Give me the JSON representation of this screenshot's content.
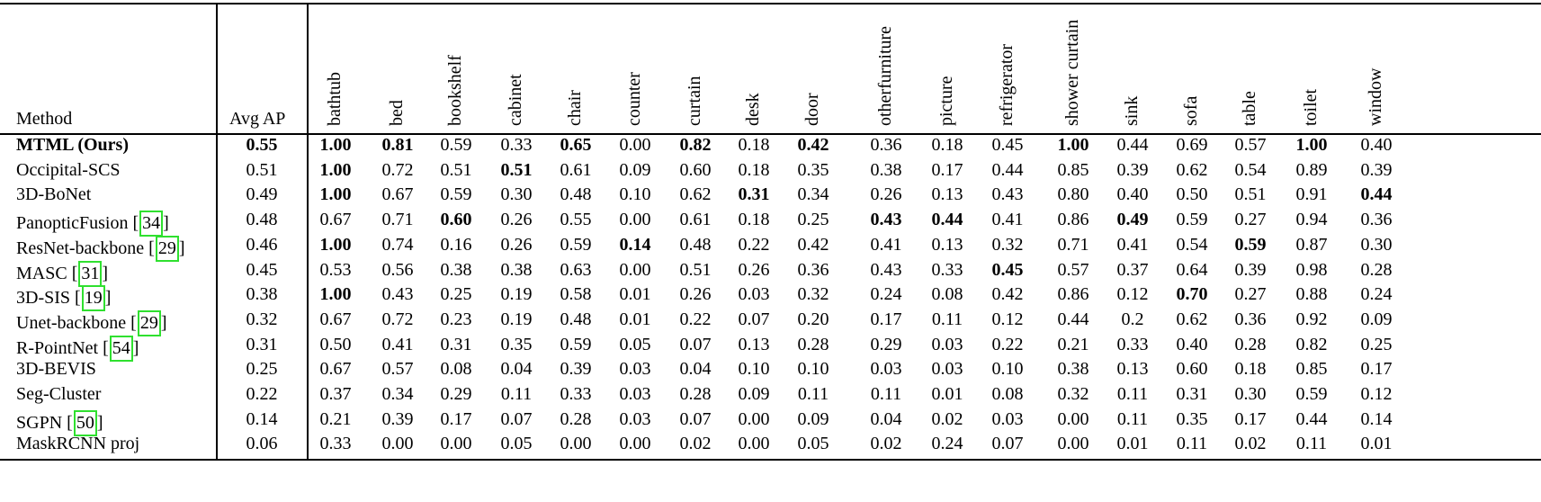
{
  "table": {
    "method_header": "Method",
    "avg_header": "Avg AP",
    "categories": [
      "bathtub",
      "bed",
      "bookshelf",
      "cabinet",
      "chair",
      "counter",
      "curtain",
      "desk",
      "door",
      "otherfurniture",
      "picture",
      "refrigerator",
      "shower curtain",
      "sink",
      "sofa",
      "table",
      "toilet",
      "window"
    ],
    "rows": [
      {
        "method": "MTML (Ours)",
        "ref": "",
        "bold_method": true,
        "avg": "0.55",
        "avg_bold": true,
        "values": [
          "1.00",
          "0.81",
          "0.59",
          "0.33",
          "0.65",
          "0.00",
          "0.82",
          "0.18",
          "0.42",
          "0.36",
          "0.18",
          "0.45",
          "1.00",
          "0.44",
          "0.69",
          "0.57",
          "1.00",
          "0.40"
        ],
        "bold": [
          0,
          1,
          4,
          6,
          8,
          12,
          16
        ]
      },
      {
        "method": "Occipital-SCS",
        "ref": "",
        "bold_method": false,
        "avg": "0.51",
        "avg_bold": false,
        "values": [
          "1.00",
          "0.72",
          "0.51",
          "0.51",
          "0.61",
          "0.09",
          "0.60",
          "0.18",
          "0.35",
          "0.38",
          "0.17",
          "0.44",
          "0.85",
          "0.39",
          "0.62",
          "0.54",
          "0.89",
          "0.39"
        ],
        "bold": [
          0,
          3
        ]
      },
      {
        "method": "3D-BoNet",
        "ref": "",
        "bold_method": false,
        "avg": "0.49",
        "avg_bold": false,
        "values": [
          "1.00",
          "0.67",
          "0.59",
          "0.30",
          "0.48",
          "0.10",
          "0.62",
          "0.31",
          "0.34",
          "0.26",
          "0.13",
          "0.43",
          "0.80",
          "0.40",
          "0.50",
          "0.51",
          "0.91",
          "0.44"
        ],
        "bold": [
          0,
          7,
          17
        ]
      },
      {
        "method": "PanopticFusion",
        "ref": "34",
        "bold_method": false,
        "avg": "0.48",
        "avg_bold": false,
        "values": [
          "0.67",
          "0.71",
          "0.60",
          "0.26",
          "0.55",
          "0.00",
          "0.61",
          "0.18",
          "0.25",
          "0.43",
          "0.44",
          "0.41",
          "0.86",
          "0.49",
          "0.59",
          "0.27",
          "0.94",
          "0.36"
        ],
        "bold": [
          2,
          9,
          10,
          13
        ]
      },
      {
        "method": "ResNet-backbone",
        "ref": "29",
        "bold_method": false,
        "avg": "0.46",
        "avg_bold": false,
        "values": [
          "1.00",
          "0.74",
          "0.16",
          "0.26",
          "0.59",
          "0.14",
          "0.48",
          "0.22",
          "0.42",
          "0.41",
          "0.13",
          "0.32",
          "0.71",
          "0.41",
          "0.54",
          "0.59",
          "0.87",
          "0.30"
        ],
        "bold": [
          0,
          5,
          15
        ]
      },
      {
        "method": "MASC",
        "ref": "31",
        "bold_method": false,
        "avg": "0.45",
        "avg_bold": false,
        "values": [
          "0.53",
          "0.56",
          "0.38",
          "0.38",
          "0.63",
          "0.00",
          "0.51",
          "0.26",
          "0.36",
          "0.43",
          "0.33",
          "0.45",
          "0.57",
          "0.37",
          "0.64",
          "0.39",
          "0.98",
          "0.28"
        ],
        "bold": [
          11
        ]
      },
      {
        "method": "3D-SIS",
        "ref": "19",
        "bold_method": false,
        "avg": "0.38",
        "avg_bold": false,
        "values": [
          "1.00",
          "0.43",
          "0.25",
          "0.19",
          "0.58",
          "0.01",
          "0.26",
          "0.03",
          "0.32",
          "0.24",
          "0.08",
          "0.42",
          "0.86",
          "0.12",
          "0.70",
          "0.27",
          "0.88",
          "0.24"
        ],
        "bold": [
          0,
          14
        ]
      },
      {
        "method": "Unet-backbone",
        "ref": "29",
        "bold_method": false,
        "avg": "0.32",
        "avg_bold": false,
        "values": [
          "0.67",
          "0.72",
          "0.23",
          "0.19",
          "0.48",
          "0.01",
          "0.22",
          "0.07",
          "0.20",
          "0.17",
          "0.11",
          "0.12",
          "0.44",
          "0.2",
          "0.62",
          "0.36",
          "0.92",
          "0.09"
        ],
        "bold": []
      },
      {
        "method": "R-PointNet",
        "ref": "54",
        "bold_method": false,
        "avg": "0.31",
        "avg_bold": false,
        "values": [
          "0.50",
          "0.41",
          "0.31",
          "0.35",
          "0.59",
          "0.05",
          "0.07",
          "0.13",
          "0.28",
          "0.29",
          "0.03",
          "0.22",
          "0.21",
          "0.33",
          "0.40",
          "0.28",
          "0.82",
          "0.25"
        ],
        "bold": []
      },
      {
        "method": "3D-BEVIS",
        "ref": "",
        "bold_method": false,
        "avg": "0.25",
        "avg_bold": false,
        "values": [
          "0.67",
          "0.57",
          "0.08",
          "0.04",
          "0.39",
          "0.03",
          "0.04",
          "0.10",
          "0.10",
          "0.03",
          "0.03",
          "0.10",
          "0.38",
          "0.13",
          "0.60",
          "0.18",
          "0.85",
          "0.17"
        ],
        "bold": []
      },
      {
        "method": "Seg-Cluster",
        "ref": "",
        "bold_method": false,
        "avg": "0.22",
        "avg_bold": false,
        "values": [
          "0.37",
          "0.34",
          "0.29",
          "0.11",
          "0.33",
          "0.03",
          "0.28",
          "0.09",
          "0.11",
          "0.11",
          "0.01",
          "0.08",
          "0.32",
          "0.11",
          "0.31",
          "0.30",
          "0.59",
          "0.12"
        ],
        "bold": []
      },
      {
        "method": "SGPN",
        "ref": "50",
        "bold_method": false,
        "avg": "0.14",
        "avg_bold": false,
        "values": [
          "0.21",
          "0.39",
          "0.17",
          "0.07",
          "0.28",
          "0.03",
          "0.07",
          "0.00",
          "0.09",
          "0.04",
          "0.02",
          "0.03",
          "0.00",
          "0.11",
          "0.35",
          "0.17",
          "0.44",
          "0.14"
        ],
        "bold": []
      },
      {
        "method": "MaskRCNN proj",
        "ref": "",
        "bold_method": false,
        "avg": "0.06",
        "avg_bold": false,
        "values": [
          "0.33",
          "0.00",
          "0.00",
          "0.05",
          "0.00",
          "0.00",
          "0.02",
          "0.00",
          "0.05",
          "0.02",
          "0.24",
          "0.07",
          "0.00",
          "0.01",
          "0.11",
          "0.02",
          "0.11",
          "0.01"
        ],
        "bold": []
      }
    ]
  }
}
